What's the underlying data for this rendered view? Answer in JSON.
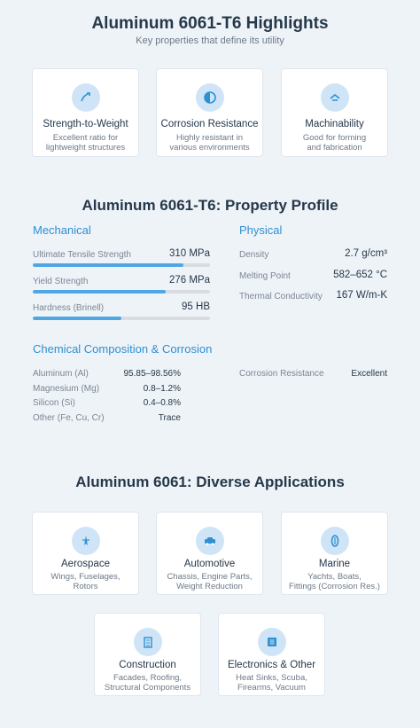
{
  "highlights": {
    "title": "Aluminum 6061-T6 Highlights",
    "subtitle": "Key properties that define its utility",
    "cards": [
      {
        "title": "Strength-to-Weight",
        "desc1": "Excellent ratio for",
        "desc2": "lightweight structures",
        "icon": "strength-icon"
      },
      {
        "title": "Corrosion Resistance",
        "desc1": "Highly resistant in",
        "desc2": "various environments",
        "icon": "shield-icon"
      },
      {
        "title": "Machinability",
        "desc1": "Good for forming",
        "desc2": "and fabrication",
        "icon": "tool-icon"
      }
    ]
  },
  "profile": {
    "title": "Aluminum 6061-T6: Property Profile",
    "mechanical": {
      "heading": "Mechanical",
      "items": [
        {
          "label": "Ultimate Tensile Strength",
          "value": "310 MPa",
          "level": 0.85
        },
        {
          "label": "Yield Strength",
          "value": "276 MPa",
          "level": 0.75
        },
        {
          "label": "Hardness (Brinell)",
          "value": "95 HB",
          "level": 0.5
        }
      ]
    },
    "physical": {
      "heading": "Physical",
      "items": [
        {
          "label": "Density",
          "value": "2.7 g/cm³"
        },
        {
          "label": "Melting Point",
          "value": "582–652 °C"
        },
        {
          "label": "Thermal Conductivity",
          "value": "167 W/m-K"
        }
      ]
    },
    "chemical": {
      "heading": "Chemical Composition & Corrosion",
      "items": [
        {
          "label": "Aluminum (Al)",
          "value": "95.85–98.56%"
        },
        {
          "label": "Magnesium (Mg)",
          "value": "0.8–1.2%"
        },
        {
          "label": "Silicon (Si)",
          "value": "0.4–0.8%"
        },
        {
          "label": "Other (Fe, Cu, Cr)",
          "value": "Trace"
        }
      ],
      "corrosion_label": "Corrosion Resistance",
      "corrosion_value": "Excellent"
    }
  },
  "applications": {
    "title": "Aluminum 6061: Diverse Applications",
    "cards": [
      {
        "title": "Aerospace",
        "desc1": "Wings, Fuselages,",
        "desc2": "Rotors",
        "icon": "plane-icon"
      },
      {
        "title": "Automotive",
        "desc1": "Chassis, Engine Parts,",
        "desc2": "Weight Reduction",
        "icon": "car-icon"
      },
      {
        "title": "Marine",
        "desc1": "Yachts, Boats,",
        "desc2": "Fittings (Corrosion Res.)",
        "icon": "anchor-icon"
      },
      {
        "title": "Construction",
        "desc1": "Facades, Roofing,",
        "desc2": "Structural Components",
        "icon": "building-icon"
      },
      {
        "title": "Electronics & Other",
        "desc1": "Heat Sinks, Scuba,",
        "desc2": "Firearms, Vacuum",
        "icon": "chip-icon"
      }
    ]
  },
  "colors": {
    "accent": "#2f8fd1",
    "bar_fill": "#4ea7e4",
    "bar_track": "#d9dde2",
    "icon_bg": "#cfe4f6"
  }
}
